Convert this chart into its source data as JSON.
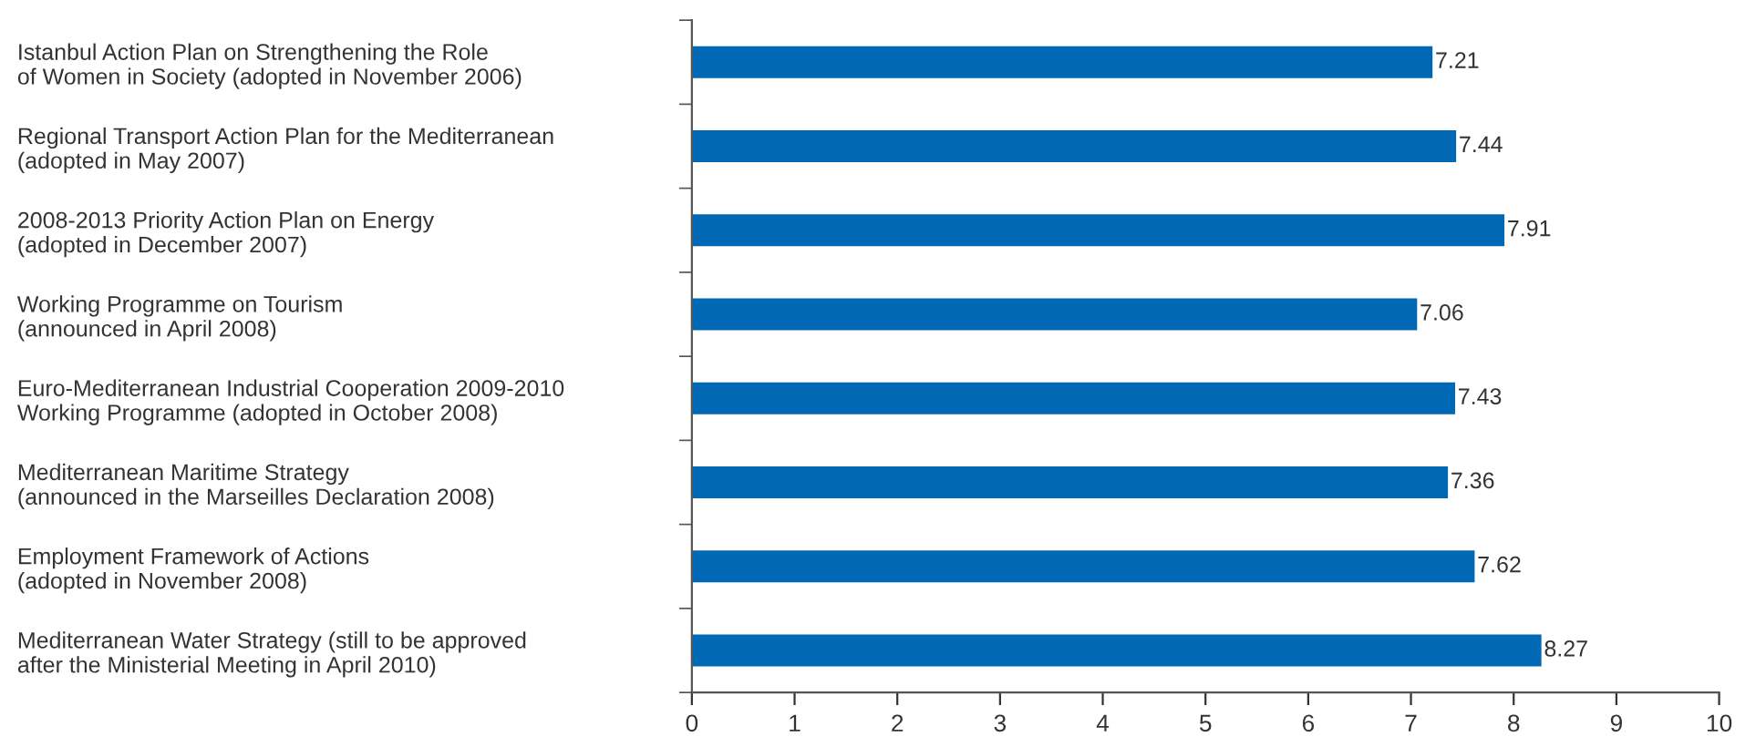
{
  "chart_data": {
    "type": "bar",
    "orientation": "horizontal",
    "categories": [
      "Istanbul Action Plan on Strengthening the Role\nof Women in Society (adopted in November 2006)",
      "Regional Transport Action Plan for the Mediterranean\n(adopted in May 2007)",
      "2008-2013 Priority Action Plan on Energy\n(adopted in December 2007)",
      "Working Programme on Tourism\n(announced in April 2008)",
      "Euro-Mediterranean Industrial Cooperation 2009-2010\nWorking Programme (adopted in October 2008)",
      "Mediterranean Maritime Strategy\n(announced in the Marseilles Declaration 2008)",
      "Employment Framework of Actions\n(adopted in November 2008)",
      "Mediterranean Water Strategy (still to be approved\nafter the Ministerial Meeting in April 2010)"
    ],
    "values": [
      7.21,
      7.44,
      7.91,
      7.06,
      7.43,
      7.36,
      7.62,
      8.27
    ],
    "color": "#0068b4",
    "data_labels": true,
    "grid": false,
    "legend": false,
    "xlim": [
      0,
      10
    ],
    "xticks": [
      0,
      1,
      2,
      3,
      4,
      5,
      6,
      7,
      8,
      9,
      10
    ]
  }
}
